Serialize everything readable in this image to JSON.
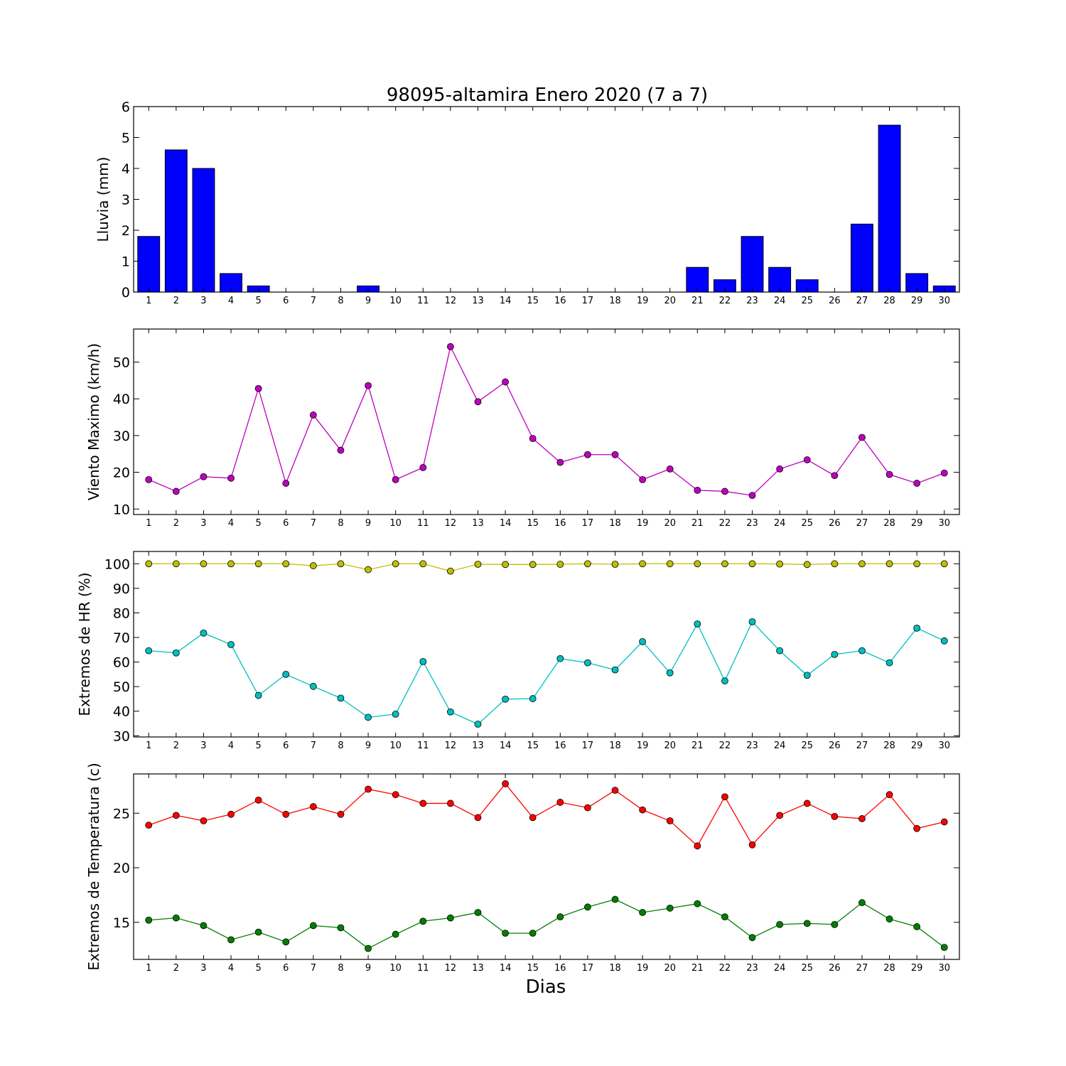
{
  "figure": {
    "title": "98095-altamira Enero 2020  (7 a 7)",
    "xlabel": "Dias"
  },
  "chart_data": [
    {
      "type": "bar",
      "ylabel": "Lluvia (mm)",
      "categories": [
        "1",
        "2",
        "3",
        "4",
        "5",
        "6",
        "7",
        "8",
        "9",
        "10",
        "11",
        "12",
        "13",
        "14",
        "15",
        "16",
        "17",
        "18",
        "19",
        "20",
        "21",
        "22",
        "23",
        "24",
        "25",
        "26",
        "27",
        "28",
        "29",
        "30"
      ],
      "ylim": [
        0,
        6
      ],
      "yticks": [
        0,
        1,
        2,
        3,
        4,
        5,
        6
      ],
      "series": [
        {
          "color": "#0000ff",
          "values": [
            1.8,
            4.6,
            4.0,
            0.6,
            0.2,
            0,
            0,
            0,
            0.2,
            0,
            0,
            0,
            0,
            0,
            0,
            0,
            0,
            0,
            0,
            0,
            0.8,
            0.4,
            1.8,
            0.8,
            0.4,
            0,
            2.2,
            5.4,
            0.6,
            0.2
          ]
        }
      ]
    },
    {
      "type": "line",
      "ylabel": "Viento Maximo (km/h)",
      "categories": [
        "1",
        "2",
        "3",
        "4",
        "5",
        "6",
        "7",
        "8",
        "9",
        "10",
        "11",
        "12",
        "13",
        "14",
        "15",
        "16",
        "17",
        "18",
        "19",
        "20",
        "21",
        "22",
        "23",
        "24",
        "25",
        "26",
        "27",
        "28",
        "29",
        "30"
      ],
      "ylim": [
        8.5,
        59
      ],
      "yticks": [
        10,
        20,
        30,
        40,
        50
      ],
      "series": [
        {
          "color": "#bf00bf",
          "values": [
            18.0,
            14.8,
            18.8,
            18.4,
            42.8,
            17.0,
            35.6,
            26.0,
            43.6,
            18.0,
            21.3,
            54.2,
            39.2,
            44.6,
            29.2,
            22.7,
            24.8,
            24.8,
            18.0,
            20.9,
            15.1,
            14.8,
            13.7,
            20.9,
            23.4,
            19.1,
            29.5,
            19.4,
            17.0,
            19.8
          ]
        }
      ]
    },
    {
      "type": "line",
      "ylabel": "Extremos de HR (%)",
      "categories": [
        "1",
        "2",
        "3",
        "4",
        "5",
        "6",
        "7",
        "8",
        "9",
        "10",
        "11",
        "12",
        "13",
        "14",
        "15",
        "16",
        "17",
        "18",
        "19",
        "20",
        "21",
        "22",
        "23",
        "24",
        "25",
        "26",
        "27",
        "28",
        "29",
        "30"
      ],
      "ylim": [
        29.5,
        105
      ],
      "yticks": [
        30,
        40,
        50,
        60,
        70,
        80,
        90,
        100
      ],
      "series": [
        {
          "color": "#bfbf00",
          "values": [
            100,
            100,
            100,
            100,
            100,
            100,
            99.2,
            100,
            97.6,
            100,
            100,
            97.0,
            99.8,
            99.7,
            99.7,
            99.8,
            100,
            99.8,
            100,
            100,
            100,
            100,
            100,
            99.9,
            99.7,
            100,
            100,
            100,
            100,
            100
          ]
        },
        {
          "color": "#00bfbf",
          "values": [
            64.6,
            63.7,
            71.8,
            67.1,
            46.4,
            55.0,
            50.1,
            45.3,
            37.5,
            38.8,
            60.2,
            39.7,
            34.7,
            44.9,
            45.1,
            61.4,
            59.7,
            56.8,
            68.3,
            55.6,
            75.5,
            52.3,
            76.4,
            64.6,
            54.6,
            63.1,
            64.6,
            59.7,
            73.8,
            68.6
          ]
        }
      ]
    },
    {
      "type": "line",
      "ylabel": "Extremos de Temperatura (c)",
      "categories": [
        "1",
        "2",
        "3",
        "4",
        "5",
        "6",
        "7",
        "8",
        "9",
        "10",
        "11",
        "12",
        "13",
        "14",
        "15",
        "16",
        "17",
        "18",
        "19",
        "20",
        "21",
        "22",
        "23",
        "24",
        "25",
        "26",
        "27",
        "28",
        "29",
        "30"
      ],
      "ylim": [
        11.6,
        28.6
      ],
      "yticks": [
        15,
        20,
        25
      ],
      "series": [
        {
          "color": "#ff0000",
          "values": [
            23.9,
            24.8,
            24.3,
            24.9,
            26.2,
            24.9,
            25.6,
            24.9,
            27.2,
            26.7,
            25.9,
            25.9,
            24.6,
            27.7,
            24.6,
            26.0,
            25.5,
            27.1,
            25.3,
            24.3,
            22.0,
            26.5,
            22.1,
            24.8,
            25.9,
            24.7,
            24.5,
            26.7,
            23.6,
            24.2
          ]
        },
        {
          "color": "#007f00",
          "values": [
            15.2,
            15.4,
            14.7,
            13.4,
            14.1,
            13.2,
            14.7,
            14.5,
            12.6,
            13.9,
            15.1,
            15.4,
            15.9,
            14.0,
            14.0,
            15.5,
            16.4,
            17.1,
            15.9,
            16.3,
            16.7,
            15.5,
            13.6,
            14.8,
            14.9,
            14.8,
            16.8,
            15.3,
            14.6,
            12.7
          ]
        }
      ]
    }
  ]
}
